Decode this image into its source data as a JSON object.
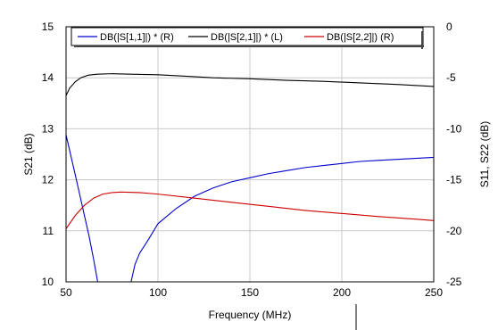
{
  "chart_data": {
    "type": "line",
    "xlabel": "Frequency (MHz)",
    "ylabel_left": "S21 (dB)",
    "ylabel_right": "S11, S22 (dB)",
    "xlim": [
      50,
      250
    ],
    "ylim_left": [
      10,
      15
    ],
    "ylim_right": [
      -25,
      0
    ],
    "x_ticks": [
      "50",
      "100",
      "150",
      "200",
      "250"
    ],
    "y_ticks_left": [
      "10",
      "11",
      "12",
      "13",
      "14",
      "15"
    ],
    "y_ticks_right": [
      "-25",
      "-20",
      "-15",
      "-10",
      "-5",
      "0"
    ],
    "grid": true,
    "legend_position": "top",
    "series": [
      {
        "name": "DB(|S[1,1]|) * (R)",
        "axis": "right",
        "color": "#0000cc",
        "points": [
          [
            50,
            -10.6
          ],
          [
            55,
            -14.5
          ],
          [
            60,
            -18.5
          ],
          [
            62.5,
            -20.5
          ],
          [
            65,
            -22.8
          ],
          [
            67.5,
            -25.3
          ],
          [
            85,
            -25.3
          ],
          [
            87.5,
            -23.3
          ],
          [
            90,
            -22.2
          ],
          [
            95,
            -20.8
          ],
          [
            100,
            -19.3
          ],
          [
            110,
            -17.8
          ],
          [
            120,
            -16.6
          ],
          [
            130,
            -15.8
          ],
          [
            140,
            -15.2
          ],
          [
            150,
            -14.8
          ],
          [
            160,
            -14.4
          ],
          [
            170,
            -14.1
          ],
          [
            180,
            -13.8
          ],
          [
            190,
            -13.6
          ],
          [
            200,
            -13.4
          ],
          [
            210,
            -13.2
          ],
          [
            220,
            -13.1
          ],
          [
            230,
            -13.0
          ],
          [
            240,
            -12.9
          ],
          [
            250,
            -12.8
          ]
        ]
      },
      {
        "name": "DB(|S[2,1]|) * (L)",
        "axis": "left",
        "color": "#000000",
        "points": [
          [
            50,
            13.65
          ],
          [
            52,
            13.8
          ],
          [
            55,
            13.92
          ],
          [
            58,
            14.0
          ],
          [
            62,
            14.05
          ],
          [
            67,
            14.07
          ],
          [
            75,
            14.08
          ],
          [
            85,
            14.07
          ],
          [
            100,
            14.06
          ],
          [
            115,
            14.03
          ],
          [
            130,
            14.0
          ],
          [
            150,
            13.98
          ],
          [
            170,
            13.95
          ],
          [
            190,
            13.93
          ],
          [
            210,
            13.9
          ],
          [
            230,
            13.87
          ],
          [
            250,
            13.83
          ]
        ]
      },
      {
        "name": "DB(|S[2,2]|) (R)",
        "axis": "right",
        "color": "#cc0000",
        "points": [
          [
            50,
            -19.8
          ],
          [
            55,
            -18.5
          ],
          [
            60,
            -17.5
          ],
          [
            65,
            -16.8
          ],
          [
            70,
            -16.4
          ],
          [
            75,
            -16.25
          ],
          [
            80,
            -16.2
          ],
          [
            90,
            -16.25
          ],
          [
            100,
            -16.4
          ],
          [
            120,
            -16.8
          ],
          [
            140,
            -17.2
          ],
          [
            160,
            -17.6
          ],
          [
            180,
            -18.0
          ],
          [
            200,
            -18.3
          ],
          [
            220,
            -18.6
          ],
          [
            240,
            -18.85
          ],
          [
            250,
            -19.0
          ]
        ]
      }
    ]
  }
}
